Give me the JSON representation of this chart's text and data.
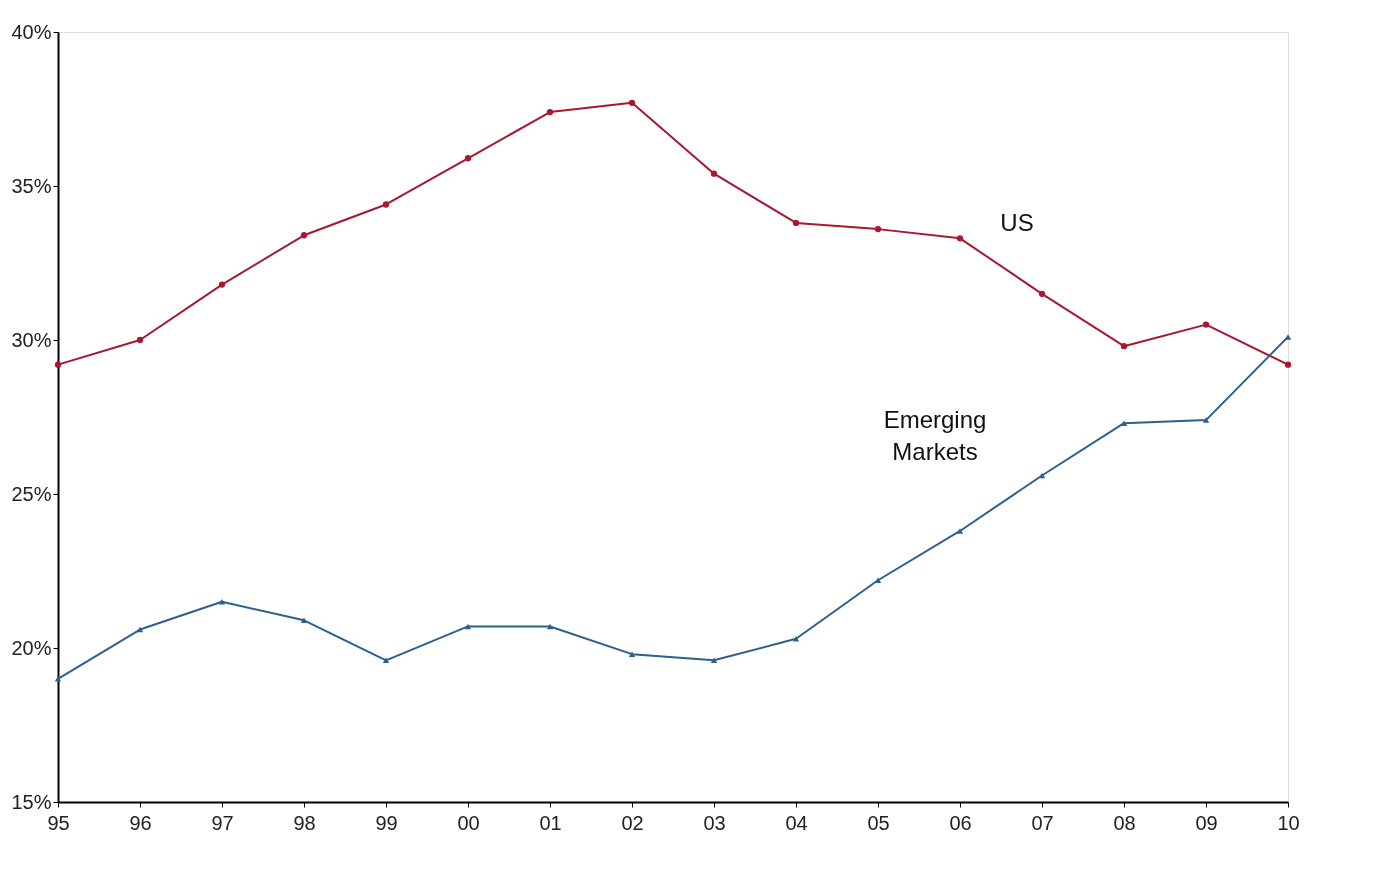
{
  "chart_data": {
    "type": "line",
    "categories": [
      "95",
      "96",
      "97",
      "98",
      "99",
      "00",
      "01",
      "02",
      "03",
      "04",
      "05",
      "06",
      "07",
      "08",
      "09",
      "10"
    ],
    "series": [
      {
        "name": "US",
        "color": "#a8182e",
        "marker": "circle",
        "values": [
          29.2,
          30.0,
          31.8,
          33.4,
          34.4,
          35.9,
          37.4,
          37.7,
          35.4,
          33.8,
          33.6,
          33.3,
          31.5,
          29.8,
          30.5,
          29.2
        ]
      },
      {
        "name": "Emerging Markets",
        "color": "#2e5f8e",
        "marker": "triangle",
        "values": [
          19.0,
          20.6,
          21.5,
          20.9,
          19.6,
          20.7,
          20.7,
          19.8,
          19.6,
          20.3,
          22.2,
          23.8,
          25.6,
          27.3,
          27.4,
          30.1
        ]
      }
    ],
    "ylim": [
      15,
      40
    ],
    "yticks": [
      {
        "value": 15,
        "label": "15%"
      },
      {
        "value": 20,
        "label": "20%"
      },
      {
        "value": 25,
        "label": "25%"
      },
      {
        "value": 30,
        "label": "30%"
      },
      {
        "value": 35,
        "label": "35%"
      },
      {
        "value": 40,
        "label": "40%"
      }
    ],
    "grid": false,
    "legend": false,
    "line_style": "solid"
  }
}
